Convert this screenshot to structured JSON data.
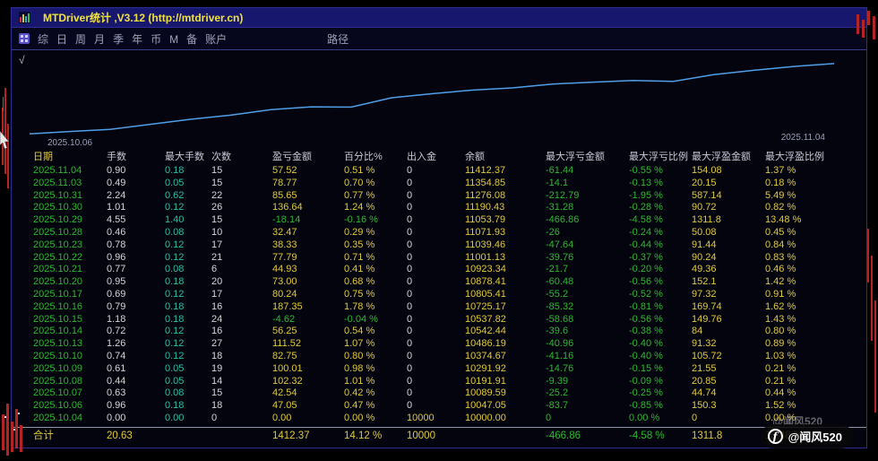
{
  "colors": {
    "title_yellow": "#f0e23c",
    "value_yellow": "#e0ca39",
    "green": "#2db82d",
    "teal": "#27c0a3",
    "white": "#d6d6d6",
    "header_gray": "#c9c9d6",
    "line_blue": "#4f9fe8",
    "titlebar_bg": "#17176e",
    "candle_red": "#c03030"
  },
  "window": {
    "title": "MTDriver统计 ,V3.12 (http://mtdriver.cn)"
  },
  "toolbar": {
    "items": [
      "综",
      "日",
      "周",
      "月",
      "季",
      "年",
      "币",
      "M",
      "备",
      "账户"
    ],
    "path_label": "路径",
    "check_label": "√"
  },
  "chart": {
    "start_label": "2025.10.06",
    "end_label": "2025.11.04"
  },
  "chart_data": {
    "type": "line",
    "title": "",
    "xlabel": "",
    "ylabel": "",
    "grid": false,
    "legend": "none",
    "line_color": "#4f9fe8",
    "ylim": [
      9950,
      11500
    ],
    "visible_x_tick_labels": [
      "2025.10.06",
      "2025.11.04"
    ],
    "x": [
      "2025.10.04",
      "2025.10.06",
      "2025.10.07",
      "2025.10.08",
      "2025.10.09",
      "2025.10.10",
      "2025.10.13",
      "2025.10.14",
      "2025.10.15",
      "2025.10.16",
      "2025.10.17",
      "2025.10.20",
      "2025.10.21",
      "2025.10.22",
      "2025.10.23",
      "2025.10.28",
      "2025.10.29",
      "2025.10.30",
      "2025.10.31",
      "2025.11.03",
      "2025.11.04"
    ],
    "series": [
      {
        "name": "余额",
        "values": [
          10000.0,
          10047.05,
          10089.59,
          10191.91,
          10291.92,
          10374.67,
          10486.19,
          10542.44,
          10537.82,
          10725.17,
          10805.41,
          10878.41,
          10923.34,
          11001.13,
          11039.46,
          11071.93,
          11053.79,
          11190.43,
          11276.08,
          11354.85,
          11412.37
        ]
      }
    ]
  },
  "table": {
    "headers": [
      "日期",
      "手数",
      "最大手数",
      "次数",
      "盈亏金额",
      "百分比%",
      "出入金",
      "余额",
      "最大浮亏金额",
      "最大浮亏比例",
      "最大浮盈金额",
      "最大浮盈比例"
    ],
    "rows": [
      [
        "2025.11.04",
        "0.90",
        "0.18",
        "15",
        "57.52",
        "0.51 %",
        "0",
        "11412.37",
        "-61.44",
        "-0.55 %",
        "154.08",
        "1.37 %"
      ],
      [
        "2025.11.03",
        "0.49",
        "0.05",
        "15",
        "78.77",
        "0.70 %",
        "0",
        "11354.85",
        "-14.1",
        "-0.13 %",
        "20.15",
        "0.18 %"
      ],
      [
        "2025.10.31",
        "2.24",
        "0.62",
        "22",
        "85.65",
        "0.77 %",
        "0",
        "11276.08",
        "-212.79",
        "-1.95 %",
        "587.14",
        "5.49 %"
      ],
      [
        "2025.10.30",
        "1.01",
        "0.12",
        "26",
        "136.64",
        "1.24 %",
        "0",
        "11190.43",
        "-31.28",
        "-0.28 %",
        "90.72",
        "0.82 %"
      ],
      [
        "2025.10.29",
        "4.55",
        "1.40",
        "15",
        "-18.14",
        "-0.16 %",
        "0",
        "11053.79",
        "-466.86",
        "-4.58 %",
        "1311.8",
        "13.48 %"
      ],
      [
        "2025.10.28",
        "0.46",
        "0.08",
        "10",
        "32.47",
        "0.29 %",
        "0",
        "11071.93",
        "-26",
        "-0.24 %",
        "50.08",
        "0.45 %"
      ],
      [
        "2025.10.23",
        "0.78",
        "0.12",
        "17",
        "38.33",
        "0.35 %",
        "0",
        "11039.46",
        "-47.64",
        "-0.44 %",
        "91.44",
        "0.84 %"
      ],
      [
        "2025.10.22",
        "0.96",
        "0.12",
        "21",
        "77.79",
        "0.71 %",
        "0",
        "11001.13",
        "-39.76",
        "-0.37 %",
        "90.24",
        "0.83 %"
      ],
      [
        "2025.10.21",
        "0.77",
        "0.08",
        "6",
        "44.93",
        "0.41 %",
        "0",
        "10923.34",
        "-21.7",
        "-0.20 %",
        "49.36",
        "0.46 %"
      ],
      [
        "2025.10.20",
        "0.95",
        "0.18",
        "20",
        "73.00",
        "0.68 %",
        "0",
        "10878.41",
        "-60.48",
        "-0.56 %",
        "152.1",
        "1.42 %"
      ],
      [
        "2025.10.17",
        "0.69",
        "0.12",
        "17",
        "80.24",
        "0.75 %",
        "0",
        "10805.41",
        "-55.2",
        "-0.52 %",
        "97.32",
        "0.91 %"
      ],
      [
        "2025.10.16",
        "0.79",
        "0.18",
        "16",
        "187.35",
        "1.78 %",
        "0",
        "10725.17",
        "-85.32",
        "-0.81 %",
        "169.74",
        "1.62 %"
      ],
      [
        "2025.10.15",
        "1.18",
        "0.18",
        "24",
        "-4.62",
        "-0.04 %",
        "0",
        "10537.82",
        "-58.68",
        "-0.56 %",
        "149.76",
        "1.43 %"
      ],
      [
        "2025.10.14",
        "0.72",
        "0.12",
        "16",
        "56.25",
        "0.54 %",
        "0",
        "10542.44",
        "-39.6",
        "-0.38 %",
        "84",
        "0.80 %"
      ],
      [
        "2025.10.13",
        "1.26",
        "0.12",
        "27",
        "111.52",
        "1.07 %",
        "0",
        "10486.19",
        "-40.96",
        "-0.40 %",
        "91.32",
        "0.89 %"
      ],
      [
        "2025.10.10",
        "0.74",
        "0.12",
        "18",
        "82.75",
        "0.80 %",
        "0",
        "10374.67",
        "-41.16",
        "-0.40 %",
        "105.72",
        "1.03 %"
      ],
      [
        "2025.10.09",
        "0.61",
        "0.05",
        "19",
        "100.01",
        "0.98 %",
        "0",
        "10291.92",
        "-14.76",
        "-0.15 %",
        "21.55",
        "0.21 %"
      ],
      [
        "2025.10.08",
        "0.44",
        "0.05",
        "14",
        "102.32",
        "1.01 %",
        "0",
        "10191.91",
        "-9.39",
        "-0.09 %",
        "20.85",
        "0.21 %"
      ],
      [
        "2025.10.07",
        "0.63",
        "0.08",
        "15",
        "42.54",
        "0.42 %",
        "0",
        "10089.59",
        "-25.2",
        "-0.25 %",
        "44.74",
        "0.44 %"
      ],
      [
        "2025.10.06",
        "0.96",
        "0.18",
        "18",
        "47.05",
        "0.47 %",
        "0",
        "10047.05",
        "-83.7",
        "-0.85 %",
        "150.3",
        "1.52 %"
      ],
      [
        "2025.10.04",
        "0.00",
        "0.00",
        "0",
        "0.00",
        "0.00 %",
        "10000",
        "10000.00",
        "0",
        "0.00 %",
        "0",
        "0.00 %"
      ]
    ],
    "total": [
      "合计",
      "20.63",
      "",
      "",
      "1412.37",
      "14.12 %",
      "10000",
      "",
      "-466.86",
      "-4.58 %",
      "1311.8",
      "13.48 %"
    ]
  },
  "watermark": {
    "logo": "f",
    "handle": "@闻风520"
  }
}
